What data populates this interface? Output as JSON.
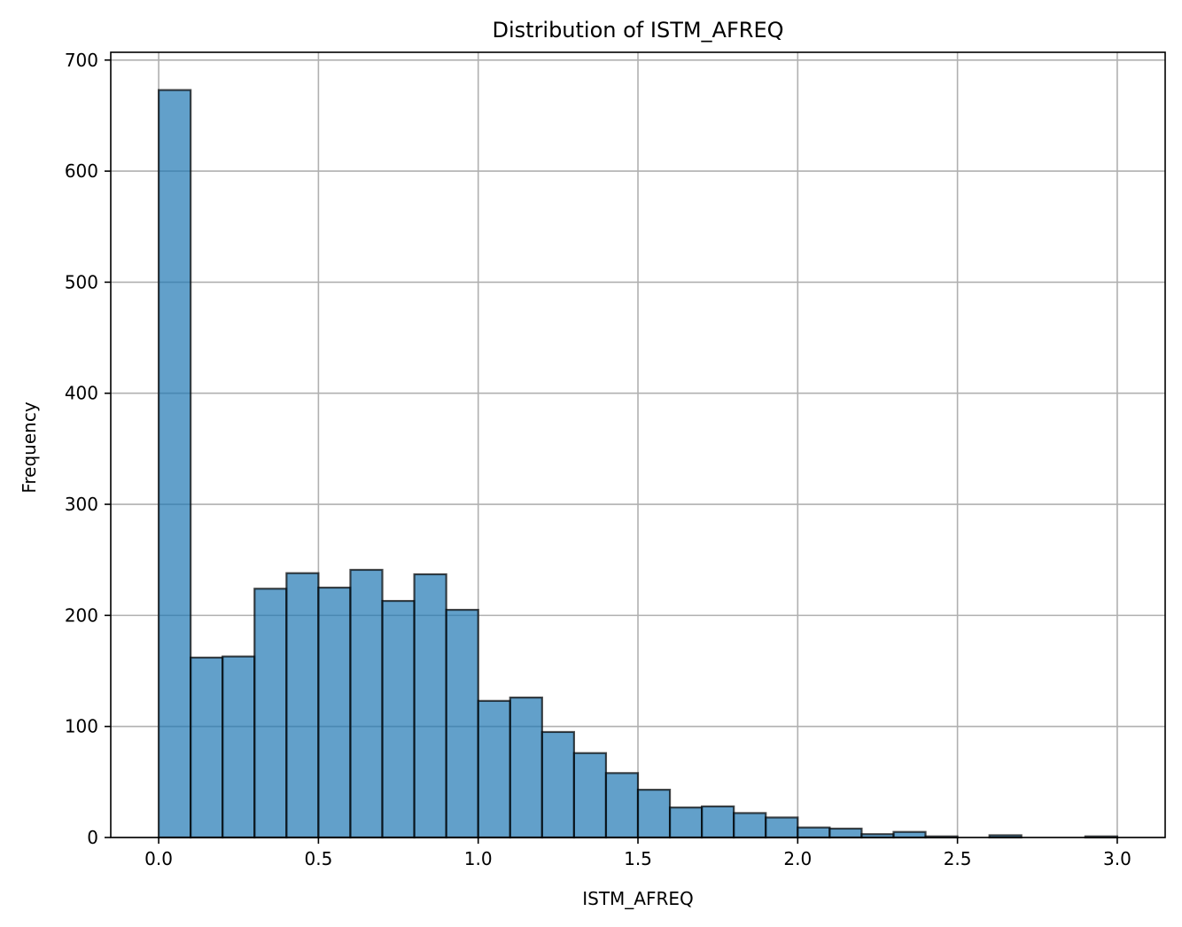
{
  "chart_data": {
    "type": "bar",
    "title": "Distribution of ISTM_AFREQ",
    "xlabel": "ISTM_AFREQ",
    "ylabel": "Frequency",
    "bin_edges": [
      0.0,
      0.1,
      0.2,
      0.3,
      0.4,
      0.5,
      0.6,
      0.7,
      0.8,
      0.9,
      1.0,
      1.1,
      1.2,
      1.3,
      1.4,
      1.5,
      1.6,
      1.7,
      1.8,
      1.9,
      2.0,
      2.1,
      2.2,
      2.3,
      2.4,
      2.5,
      2.6,
      2.7,
      2.8,
      2.9,
      3.0
    ],
    "values": [
      673,
      162,
      163,
      224,
      238,
      225,
      241,
      213,
      237,
      205,
      123,
      126,
      95,
      76,
      58,
      43,
      27,
      28,
      22,
      18,
      9,
      8,
      3,
      5,
      1,
      0,
      2,
      0,
      0,
      1
    ],
    "xlim": [
      -0.15,
      3.15
    ],
    "ylim": [
      0,
      707
    ],
    "xticks": [
      "0.0",
      "0.5",
      "1.0",
      "1.5",
      "2.0",
      "2.5",
      "3.0"
    ],
    "yticks": [
      "0",
      "100",
      "200",
      "300",
      "400",
      "500",
      "600",
      "700"
    ],
    "grid": true,
    "bar_color": "#1f77b4",
    "edge_color": "#000000"
  }
}
